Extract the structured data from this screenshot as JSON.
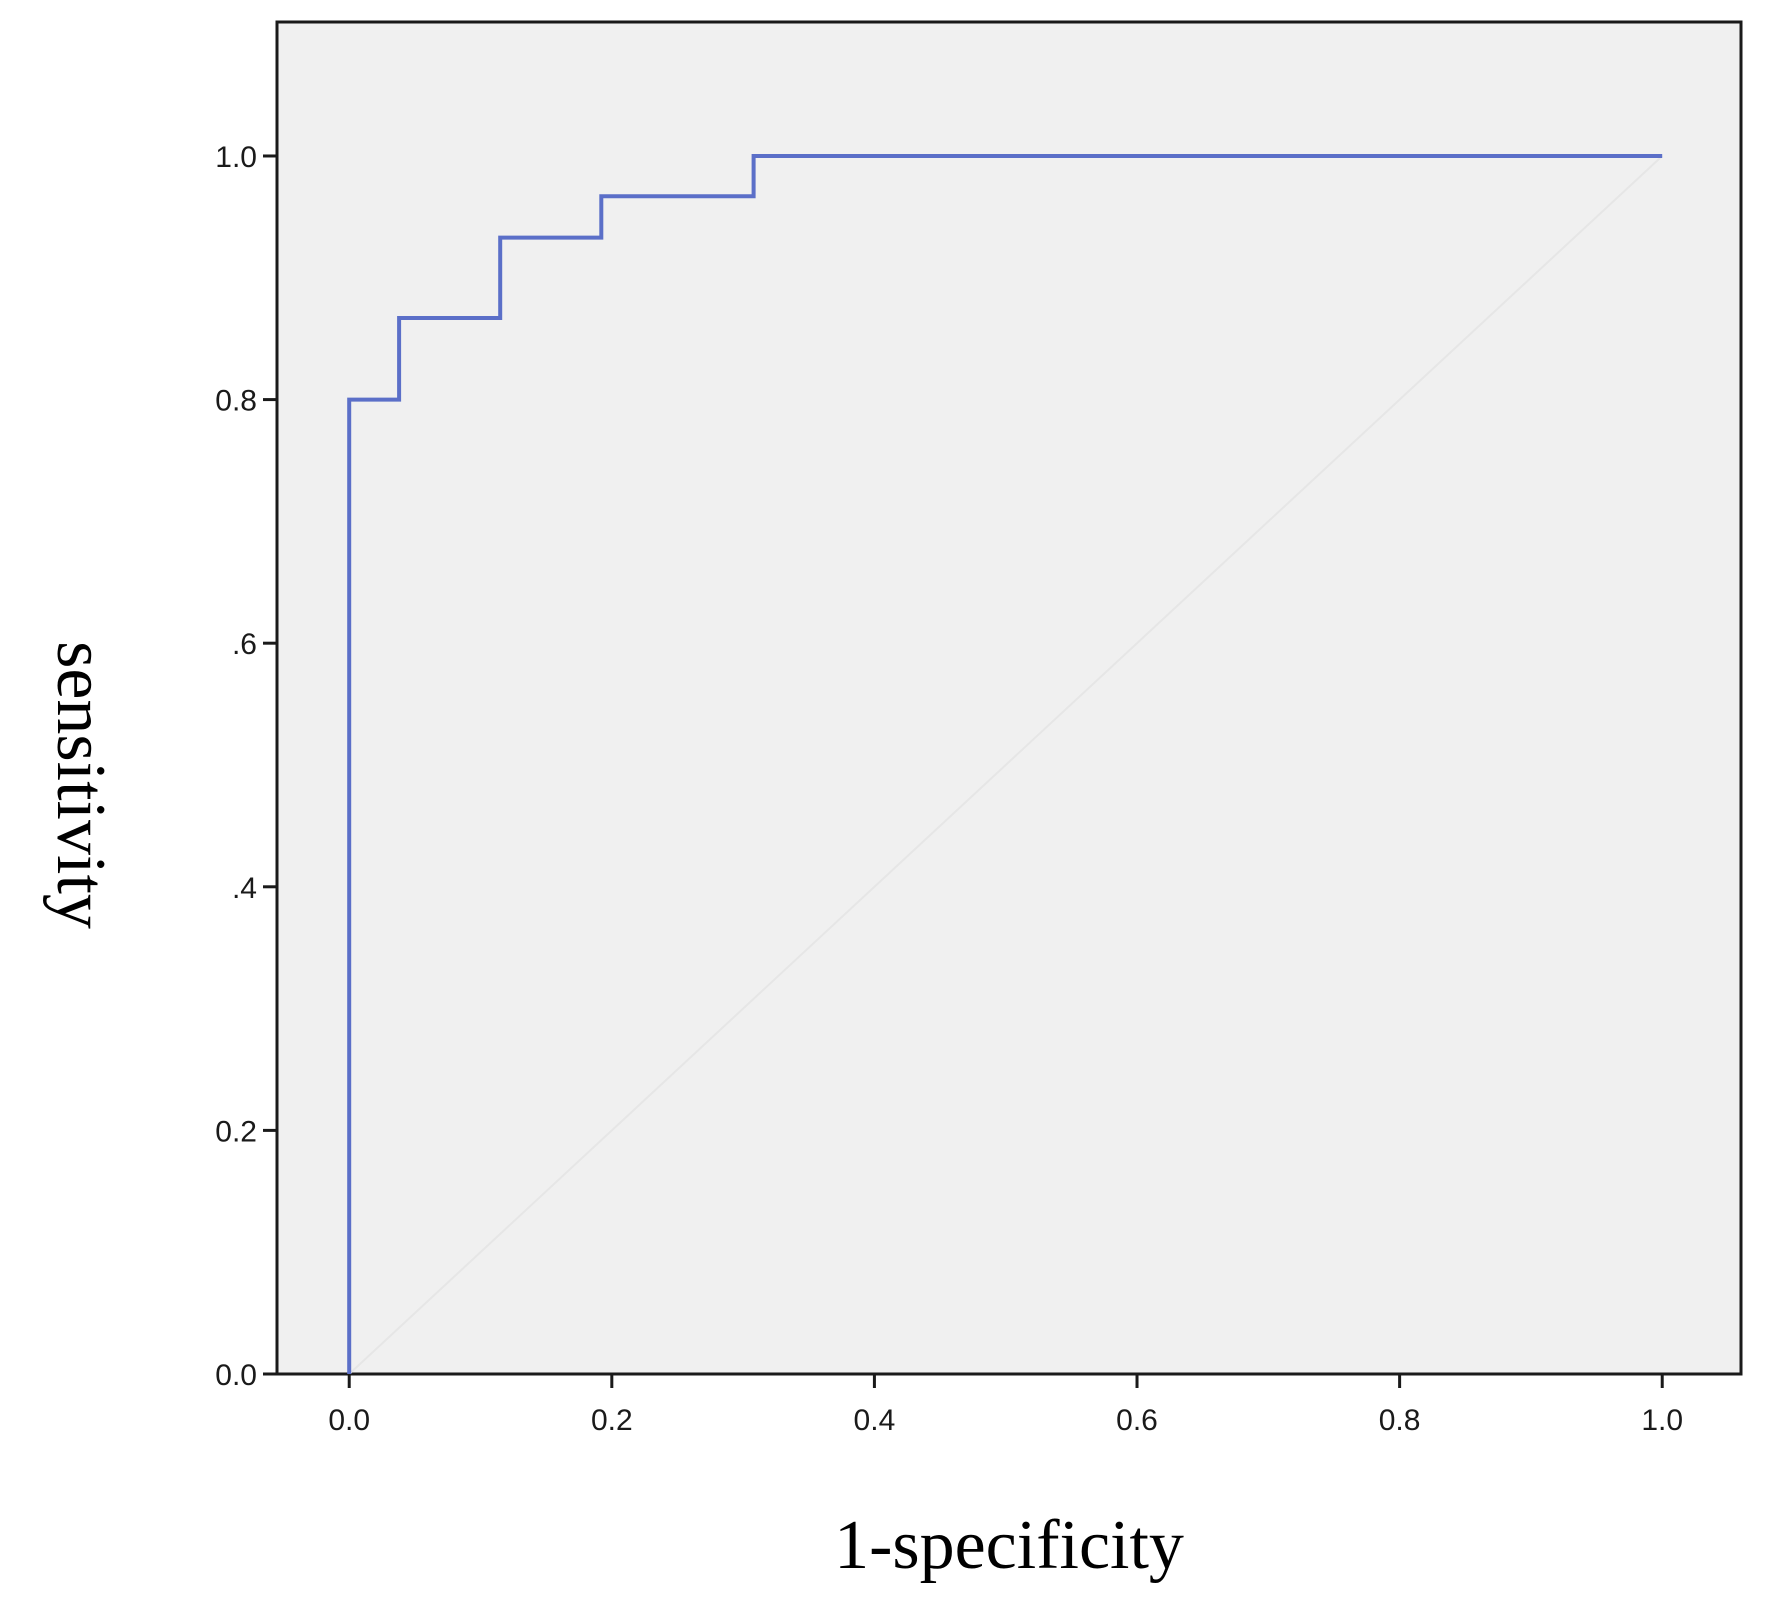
{
  "chart_data": {
    "type": "line",
    "title": "",
    "xlabel": "1-specificity",
    "ylabel": "sensitivity",
    "xlim": [
      -0.055,
      1.06
    ],
    "ylim": [
      0,
      1.11
    ],
    "x_ticks": [
      {
        "value": 0.0,
        "label": "0.0"
      },
      {
        "value": 0.2,
        "label": "0.2"
      },
      {
        "value": 0.4,
        "label": "0.4"
      },
      {
        "value": 0.6,
        "label": "0.6"
      },
      {
        "value": 0.8,
        "label": "0.8"
      },
      {
        "value": 1.0,
        "label": "1.0"
      }
    ],
    "y_ticks": [
      {
        "value": 0.0,
        "label": "0.0"
      },
      {
        "value": 0.2,
        "label": "0.2"
      },
      {
        "value": 0.4,
        "label": ".4"
      },
      {
        "value": 0.6,
        "label": ".6"
      },
      {
        "value": 0.8,
        "label": "0.8"
      },
      {
        "value": 1.0,
        "label": "1.0"
      }
    ],
    "grid": false,
    "legend": "none",
    "background_color": "#f0f0f0",
    "series": [
      {
        "kind": "roc-curve",
        "color": "#5b6fc8",
        "step": true,
        "x": [
          0.0,
          0.0,
          0.038,
          0.038,
          0.115,
          0.115,
          0.192,
          0.192,
          0.308,
          0.308,
          1.0
        ],
        "y": [
          0.0,
          0.8,
          0.8,
          0.867,
          0.867,
          0.933,
          0.933,
          0.967,
          0.967,
          1.0,
          1.0
        ]
      },
      {
        "kind": "reference-line",
        "color": "#e6e6e6",
        "x": [
          0.0,
          1.0
        ],
        "y": [
          0.0,
          1.0
        ]
      }
    ]
  }
}
